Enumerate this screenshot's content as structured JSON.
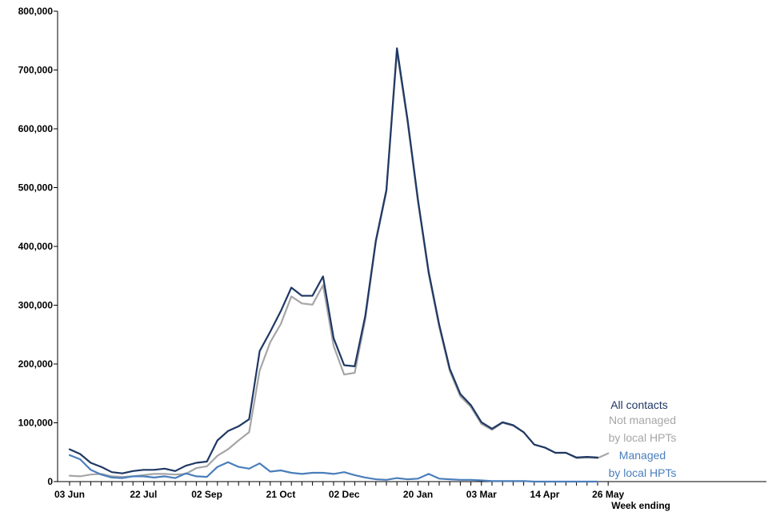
{
  "chart_data": {
    "type": "line",
    "title": "",
    "xlabel": "Week ending",
    "ylabel": "",
    "ylim": [
      0,
      800000
    ],
    "y_ticks": [
      0,
      100000,
      200000,
      300000,
      400000,
      500000,
      600000,
      700000,
      800000
    ],
    "y_tick_labels": [
      "0",
      "100,000",
      "200,000",
      "300,000",
      "400,000",
      "500,000",
      "600,000",
      "700,000",
      "800,000"
    ],
    "x_tick_labels": [
      "03 Jun",
      "22 Jul",
      "02 Sep",
      "21 Oct",
      "02 Dec",
      "20 Jan",
      "03 Mar",
      "14 Apr",
      "26 May"
    ],
    "x_tick_label_index": [
      0,
      7,
      13,
      20,
      26,
      33,
      39,
      45,
      51
    ],
    "grid": false,
    "legend_position": "right",
    "x": [
      "03 Jun",
      "10 Jun",
      "17 Jun",
      "24 Jun",
      "01 Jul",
      "08 Jul",
      "15 Jul",
      "22 Jul",
      "29 Jul",
      "05 Aug",
      "12 Aug",
      "19 Aug",
      "26 Aug",
      "02 Sep",
      "09 Sep",
      "16 Sep",
      "23 Sep",
      "30 Sep",
      "07 Oct",
      "14 Oct",
      "21 Oct",
      "28 Oct",
      "04 Nov",
      "11 Nov",
      "18 Nov",
      "25 Nov",
      "02 Dec",
      "09 Dec",
      "16 Dec",
      "23 Dec",
      "30 Dec",
      "06 Jan",
      "13 Jan",
      "20 Jan",
      "27 Jan",
      "03 Feb",
      "10 Feb",
      "17 Feb",
      "24 Feb",
      "03 Mar",
      "10 Mar",
      "17 Mar",
      "24 Mar",
      "31 Mar",
      "07 Apr",
      "14 Apr",
      "21 Apr",
      "28 Apr",
      "05 May",
      "12 May",
      "19 May",
      "26 May"
    ],
    "series": [
      {
        "name": "All contacts",
        "color": "#1f3864",
        "values": [
          55000,
          47000,
          32000,
          25000,
          16000,
          14000,
          18000,
          20000,
          20000,
          22000,
          18000,
          27000,
          32000,
          34000,
          70000,
          86000,
          94000,
          106000,
          222000,
          255000,
          290000,
          330000,
          316000,
          316000,
          349000,
          244000,
          198000,
          196000,
          282000,
          410000,
          496000,
          737000,
          616000,
          478000,
          357000,
          267000,
          192000,
          149000,
          130000,
          101000,
          90000,
          101000,
          96000,
          84000,
          63000,
          58000,
          49000,
          49000,
          41000,
          42000,
          41000,
          null
        ]
      },
      {
        "name": "Not managed by local HPTs",
        "color": "#a6a6a6",
        "values": [
          10000,
          9000,
          12000,
          13000,
          9000,
          8000,
          9000,
          11000,
          13000,
          13000,
          12000,
          13000,
          23000,
          26000,
          44000,
          55000,
          70000,
          84000,
          189000,
          237000,
          268000,
          315000,
          303000,
          301000,
          334000,
          231000,
          182000,
          185000,
          276000,
          407000,
          493000,
          731000,
          612000,
          474000,
          353000,
          263000,
          188000,
          145000,
          127000,
          98000,
          88000,
          100000,
          95000,
          84000,
          63000,
          58000,
          49000,
          49000,
          40000,
          41000,
          40000,
          48000
        ]
      },
      {
        "name": "Managed by local HPTs",
        "color": "#4a7ebb",
        "values": [
          45000,
          38000,
          20000,
          12000,
          7000,
          6000,
          9000,
          9000,
          7000,
          9000,
          6000,
          14000,
          9000,
          8000,
          25000,
          33000,
          25000,
          22000,
          31000,
          17000,
          19000,
          15000,
          13000,
          15000,
          15000,
          13000,
          16000,
          11000,
          7000,
          4000,
          3000,
          6000,
          4000,
          5000,
          13000,
          5000,
          4000,
          3000,
          3000,
          2000,
          1000,
          1000,
          1000,
          1000,
          0,
          0,
          0,
          0,
          0,
          0,
          0,
          null
        ]
      }
    ],
    "legend": {
      "all_contacts": "All contacts",
      "not_managed_line1": "Not managed",
      "not_managed_line2": "by local HPTs",
      "managed_line1": "Managed",
      "managed_line2": "by local HPTs"
    }
  }
}
